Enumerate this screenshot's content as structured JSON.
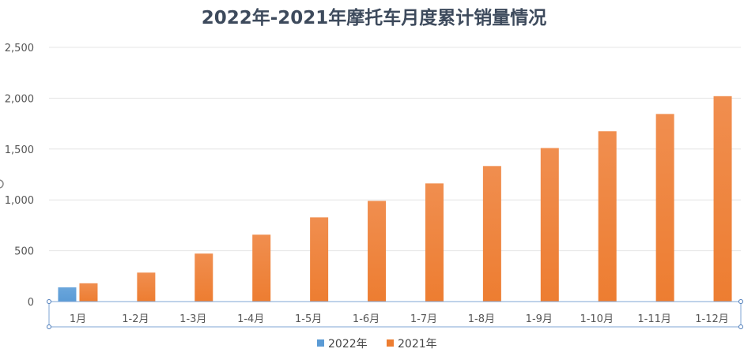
{
  "chart_data": {
    "type": "bar",
    "title": "2022年-2021年摩托车月度累计销量情况",
    "categories": [
      "1月",
      "1-2月",
      "1-3月",
      "1-4月",
      "1-5月",
      "1-6月",
      "1-7月",
      "1-8月",
      "1-9月",
      "1-10月",
      "1-11月",
      "1-12月"
    ],
    "series": [
      {
        "name": "2022年",
        "color": "#5b9bd5",
        "values": [
          140,
          null,
          null,
          null,
          null,
          null,
          null,
          null,
          null,
          null,
          null,
          null
        ]
      },
      {
        "name": "2021年",
        "color": "#ed7d31",
        "values": [
          180,
          285,
          472,
          658,
          828,
          990,
          1162,
          1333,
          1510,
          1675,
          1845,
          2020
        ]
      }
    ],
    "ylim": [
      0,
      2500
    ],
    "yticks": [
      0,
      500,
      1000,
      1500,
      2000,
      2500
    ],
    "ytick_labels": [
      "0",
      "500",
      "1,000",
      "1,500",
      "2,000",
      "2,500"
    ],
    "xlabel": "",
    "ylabel": "",
    "grid": true,
    "legend_position": "bottom"
  }
}
